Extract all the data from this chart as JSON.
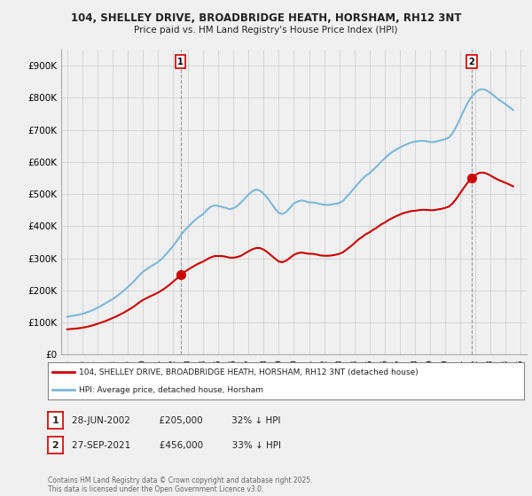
{
  "title1": "104, SHELLEY DRIVE, BROADBRIDGE HEATH, HORSHAM, RH12 3NT",
  "title2": "Price paid vs. HM Land Registry's House Price Index (HPI)",
  "ylim": [
    0,
    950000
  ],
  "yticks": [
    0,
    100000,
    200000,
    300000,
    400000,
    500000,
    600000,
    700000,
    800000,
    900000
  ],
  "ytick_labels": [
    "£0",
    "£100K",
    "£200K",
    "£300K",
    "£400K",
    "£500K",
    "£600K",
    "£700K",
    "£800K",
    "£900K"
  ],
  "background_color": "#f0f0f0",
  "plot_bg_color": "#f0f0f0",
  "grid_color": "#cccccc",
  "hpi_color": "#7db8d8",
  "price_color": "#cc0000",
  "transaction1_date": 2002.5,
  "transaction1_price": 205000,
  "transaction1_label": "1",
  "transaction2_date": 2021.75,
  "transaction2_price": 456000,
  "transaction2_label": "2",
  "legend_label1": "104, SHELLEY DRIVE, BROADBRIDGE HEATH, HORSHAM, RH12 3NT (detached house)",
  "legend_label2": "HPI: Average price, detached house, Horsham",
  "footer": "Contains HM Land Registry data © Crown copyright and database right 2025.\nThis data is licensed under the Open Government Licence v3.0.",
  "hpi_years": [
    1995.0,
    1995.25,
    1995.5,
    1995.75,
    1996.0,
    1996.25,
    1996.5,
    1996.75,
    1997.0,
    1997.25,
    1997.5,
    1997.75,
    1998.0,
    1998.25,
    1998.5,
    1998.75,
    1999.0,
    1999.25,
    1999.5,
    1999.75,
    2000.0,
    2000.25,
    2000.5,
    2000.75,
    2001.0,
    2001.25,
    2001.5,
    2001.75,
    2002.0,
    2002.25,
    2002.5,
    2002.75,
    2003.0,
    2003.25,
    2003.5,
    2003.75,
    2004.0,
    2004.25,
    2004.5,
    2004.75,
    2005.0,
    2005.25,
    2005.5,
    2005.75,
    2006.0,
    2006.25,
    2006.5,
    2006.75,
    2007.0,
    2007.25,
    2007.5,
    2007.75,
    2008.0,
    2008.25,
    2008.5,
    2008.75,
    2009.0,
    2009.25,
    2009.5,
    2009.75,
    2010.0,
    2010.25,
    2010.5,
    2010.75,
    2011.0,
    2011.25,
    2011.5,
    2011.75,
    2012.0,
    2012.25,
    2012.5,
    2012.75,
    2013.0,
    2013.25,
    2013.5,
    2013.75,
    2014.0,
    2014.25,
    2014.5,
    2014.75,
    2015.0,
    2015.25,
    2015.5,
    2015.75,
    2016.0,
    2016.25,
    2016.5,
    2016.75,
    2017.0,
    2017.25,
    2017.5,
    2017.75,
    2018.0,
    2018.25,
    2018.5,
    2018.75,
    2019.0,
    2019.25,
    2019.5,
    2019.75,
    2020.0,
    2020.25,
    2020.5,
    2020.75,
    2021.0,
    2021.25,
    2021.5,
    2021.75,
    2022.0,
    2022.25,
    2022.5,
    2022.75,
    2023.0,
    2023.25,
    2023.5,
    2023.75,
    2024.0,
    2024.25,
    2024.5
  ],
  "hpi_values": [
    118000,
    120000,
    122000,
    124000,
    127000,
    131000,
    135000,
    140000,
    146000,
    152000,
    159000,
    166000,
    173000,
    181000,
    190000,
    200000,
    210000,
    221000,
    233000,
    246000,
    258000,
    266000,
    274000,
    281000,
    288000,
    298000,
    311000,
    324000,
    338000,
    354000,
    371000,
    386000,
    398000,
    410000,
    421000,
    430000,
    438000,
    451000,
    461000,
    465000,
    463000,
    460000,
    457000,
    453000,
    456000,
    463000,
    474000,
    486000,
    499000,
    509000,
    514000,
    511000,
    501000,
    488000,
    471000,
    455000,
    441000,
    438000,
    445000,
    458000,
    471000,
    477000,
    480000,
    478000,
    474000,
    474000,
    472000,
    469000,
    467000,
    466000,
    468000,
    470000,
    472000,
    479000,
    492000,
    505000,
    519000,
    533000,
    546000,
    557000,
    565000,
    576000,
    587000,
    600000,
    611000,
    622000,
    631000,
    638000,
    645000,
    651000,
    656000,
    661000,
    663000,
    665000,
    666000,
    665000,
    662000,
    662000,
    665000,
    668000,
    671000,
    676000,
    690000,
    711000,
    736000,
    761000,
    785000,
    803000,
    816000,
    825000,
    827000,
    823000,
    815000,
    806000,
    796000,
    788000,
    780000,
    771000,
    762000
  ],
  "price_years": [
    1995.0,
    1995.25,
    1995.5,
    1995.75,
    1996.0,
    1996.25,
    1996.5,
    1996.75,
    1997.0,
    1997.25,
    1997.5,
    1997.75,
    1998.0,
    1998.25,
    1998.5,
    1998.75,
    1999.0,
    1999.25,
    1999.5,
    1999.75,
    2000.0,
    2000.25,
    2000.5,
    2000.75,
    2001.0,
    2001.25,
    2001.5,
    2001.75,
    2002.0,
    2002.25,
    2002.5,
    2002.75,
    2003.0,
    2003.25,
    2003.5,
    2003.75,
    2004.0,
    2004.25,
    2004.5,
    2004.75,
    2005.0,
    2005.25,
    2005.5,
    2005.75,
    2006.0,
    2006.25,
    2006.5,
    2006.75,
    2007.0,
    2007.25,
    2007.5,
    2007.75,
    2008.0,
    2008.25,
    2008.5,
    2008.75,
    2009.0,
    2009.25,
    2009.5,
    2009.75,
    2010.0,
    2010.25,
    2010.5,
    2010.75,
    2011.0,
    2011.25,
    2011.5,
    2011.75,
    2012.0,
    2012.25,
    2012.5,
    2012.75,
    2013.0,
    2013.25,
    2013.5,
    2013.75,
    2014.0,
    2014.25,
    2014.5,
    2014.75,
    2015.0,
    2015.25,
    2015.5,
    2015.75,
    2016.0,
    2016.25,
    2016.5,
    2016.75,
    2017.0,
    2017.25,
    2017.5,
    2017.75,
    2018.0,
    2018.25,
    2018.5,
    2018.75,
    2019.0,
    2019.25,
    2019.5,
    2019.75,
    2020.0,
    2020.25,
    2020.5,
    2020.75,
    2021.0,
    2021.25,
    2021.5,
    2021.75,
    2022.0,
    2022.25,
    2022.5,
    2022.75,
    2023.0,
    2023.25,
    2023.5,
    2023.75,
    2024.0,
    2024.25,
    2024.5
  ],
  "price_values": [
    79000,
    80000,
    81000,
    82000,
    84000,
    86000,
    89000,
    92000,
    96000,
    100000,
    104000,
    109000,
    114000,
    119000,
    125000,
    131000,
    138000,
    145000,
    153000,
    162000,
    170000,
    176000,
    182000,
    187000,
    193000,
    200000,
    208000,
    217000,
    227000,
    237000,
    248000,
    257000,
    265000,
    272000,
    279000,
    285000,
    290000,
    297000,
    303000,
    307000,
    307000,
    307000,
    305000,
    302000,
    302000,
    304000,
    308000,
    315000,
    322000,
    328000,
    332000,
    332000,
    327000,
    319000,
    309000,
    299000,
    290000,
    288000,
    293000,
    302000,
    311000,
    316000,
    318000,
    316000,
    314000,
    314000,
    312000,
    309000,
    308000,
    308000,
    309000,
    311000,
    314000,
    319000,
    328000,
    337000,
    347000,
    358000,
    366000,
    375000,
    381000,
    389000,
    396000,
    405000,
    411000,
    419000,
    425000,
    431000,
    436000,
    441000,
    444000,
    447000,
    448000,
    450000,
    451000,
    451000,
    450000,
    450000,
    452000,
    454000,
    457000,
    461000,
    471000,
    486000,
    503000,
    520000,
    536000,
    549000,
    559000,
    566000,
    567000,
    564000,
    558000,
    551000,
    545000,
    540000,
    535000,
    530000,
    524000
  ]
}
